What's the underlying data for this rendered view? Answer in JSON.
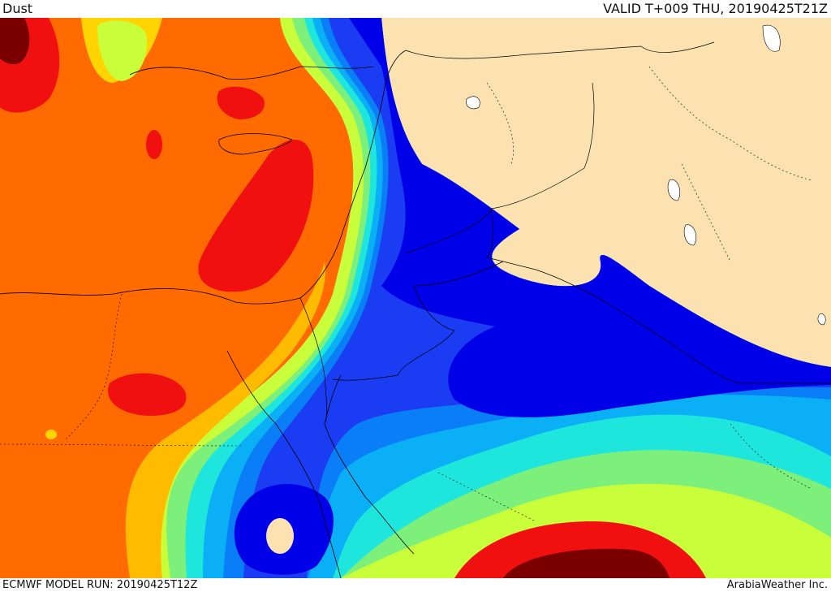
{
  "header": {
    "title": "Dust",
    "valid_time": "VALID T+009 THU, 20190425T21Z"
  },
  "footer": {
    "model_run": "ECMWF MODEL RUN: 20190425T12Z",
    "credit": "ArabiaWeather Inc."
  },
  "map": {
    "layer": "dust-concentration",
    "colors": {
      "land": "#fde2b1",
      "dark_blue": "#0000e8",
      "blue": "#1a3cf2",
      "medium_blue": "#0a7ef7",
      "light_blue": "#0aaff5",
      "cyan": "#1fe6dc",
      "light_green": "#7cf07a",
      "yellow_green": "#c9ff3a",
      "yellow": "#ffd400",
      "light_orange": "#ffbb00",
      "orange": "#ff6b00",
      "red": "#f01010",
      "dark_red": "#7a0000"
    }
  }
}
